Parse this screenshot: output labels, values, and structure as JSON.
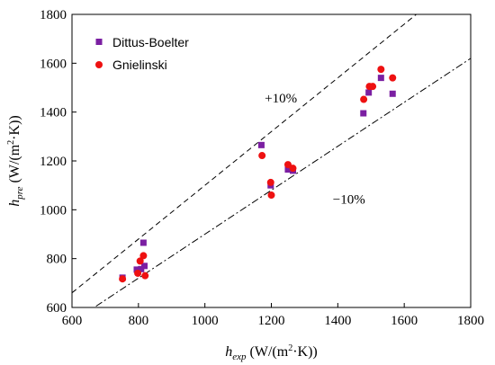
{
  "chart_data": {
    "type": "scatter",
    "xlim": [
      600,
      1800
    ],
    "ylim": [
      600,
      1800
    ],
    "xticks": [
      "600",
      "800",
      "1000",
      "1200",
      "1400",
      "1600",
      "1800"
    ],
    "yticks": [
      "600",
      "800",
      "1000",
      "1200",
      "1400",
      "1600",
      "1800"
    ],
    "xlabel": {
      "main": "h",
      "sub": "exp",
      "rest_before_sup": " (W/(m",
      "sup": "2",
      "rest_after_sup": "·K))"
    },
    "ylabel": {
      "main": "h",
      "sub": "pre",
      "rest_before_sup": " (W/(m",
      "sup": "2",
      "rest_after_sup": "·K))"
    },
    "legend_position": "top-left",
    "grid": false,
    "series": [
      {
        "name": "Dittus-Boelter",
        "marker": "square",
        "color": "#7B1FA2",
        "points": [
          [
            752,
            722
          ],
          [
            795,
            755
          ],
          [
            808,
            757
          ],
          [
            815,
            865
          ],
          [
            818,
            770
          ],
          [
            1170,
            1265
          ],
          [
            1198,
            1100
          ],
          [
            1250,
            1165
          ],
          [
            1265,
            1160
          ],
          [
            1477,
            1395
          ],
          [
            1493,
            1480
          ],
          [
            1530,
            1540
          ],
          [
            1565,
            1475
          ]
        ]
      },
      {
        "name": "Gnielinski",
        "marker": "circle",
        "color": "#EE1111",
        "points": [
          [
            752,
            717
          ],
          [
            798,
            740
          ],
          [
            805,
            790
          ],
          [
            815,
            812
          ],
          [
            820,
            730
          ],
          [
            1172,
            1222
          ],
          [
            1198,
            1112
          ],
          [
            1200,
            1060
          ],
          [
            1250,
            1185
          ],
          [
            1265,
            1170
          ],
          [
            1478,
            1452
          ],
          [
            1495,
            1505
          ],
          [
            1505,
            1505
          ],
          [
            1530,
            1575
          ],
          [
            1565,
            1540
          ]
        ]
      }
    ],
    "reference_lines": [
      {
        "label": "+10%",
        "slope": 1.1,
        "style": "dashed"
      },
      {
        "label": "−10%",
        "slope": 0.9,
        "style": "dashdot"
      }
    ],
    "annotations": [
      {
        "text": "+10%",
        "at": [
          1180,
          1440
        ]
      },
      {
        "text": "−10%",
        "at": [
          1385,
          1025
        ]
      }
    ]
  }
}
